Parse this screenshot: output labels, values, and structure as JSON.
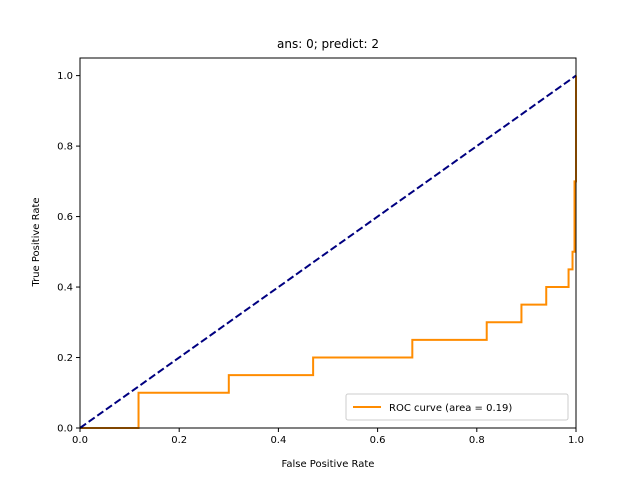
{
  "chart_data": {
    "type": "line",
    "title": "ans: 0; predict: 2",
    "xlabel": "False Positive Rate",
    "ylabel": "True Positive Rate",
    "xlim": [
      0.0,
      1.0
    ],
    "ylim": [
      0.0,
      1.05
    ],
    "xticks": [
      0.0,
      0.2,
      0.4,
      0.6,
      0.8,
      1.0
    ],
    "yticks": [
      0.0,
      0.2,
      0.4,
      0.6,
      0.8,
      1.0
    ],
    "xtick_labels": [
      "0.0",
      "0.2",
      "0.4",
      "0.6",
      "0.8",
      "1.0"
    ],
    "ytick_labels": [
      "0.0",
      "0.2",
      "0.4",
      "0.6",
      "0.8",
      "1.0"
    ],
    "grid": false,
    "legend_placement": "lower-right",
    "series": [
      {
        "name": "ROC curve (area = 0.19)",
        "color": "#ff8c00",
        "style": "solid",
        "x": [
          0.0,
          0.118,
          0.118,
          0.3,
          0.3,
          0.47,
          0.47,
          0.67,
          0.67,
          0.82,
          0.82,
          0.89,
          0.89,
          0.94,
          0.94,
          0.985,
          0.985,
          0.993,
          0.993,
          0.997,
          0.997,
          1.0,
          1.0
        ],
        "y": [
          0.0,
          0.0,
          0.1,
          0.1,
          0.15,
          0.15,
          0.2,
          0.2,
          0.25,
          0.25,
          0.3,
          0.3,
          0.35,
          0.35,
          0.4,
          0.4,
          0.45,
          0.45,
          0.5,
          0.5,
          0.7,
          0.7,
          1.0
        ]
      },
      {
        "name": "",
        "color": "#000080",
        "style": "dashed",
        "x": [
          0.0,
          1.0
        ],
        "y": [
          0.0,
          1.0
        ]
      }
    ]
  }
}
